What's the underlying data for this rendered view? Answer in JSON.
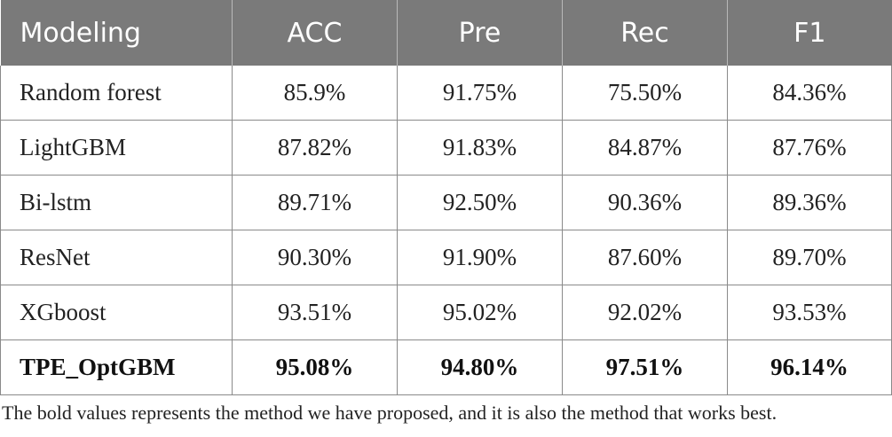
{
  "table": {
    "headers": [
      "Modeling",
      "ACC",
      "Pre",
      "Rec",
      "F1"
    ],
    "rows": [
      {
        "cells": [
          "Random forest",
          "85.9%",
          "91.75%",
          "75.50%",
          "84.36%"
        ],
        "bold": false
      },
      {
        "cells": [
          "LightGBM",
          "87.82%",
          "91.83%",
          "84.87%",
          "87.76%"
        ],
        "bold": false
      },
      {
        "cells": [
          "Bi-lstm",
          "89.71%",
          "92.50%",
          "90.36%",
          "89.36%"
        ],
        "bold": false
      },
      {
        "cells": [
          "ResNet",
          "90.30%",
          "91.90%",
          "87.60%",
          "89.70%"
        ],
        "bold": false
      },
      {
        "cells": [
          "XGboost",
          "93.51%",
          "95.02%",
          "92.02%",
          "93.53%"
        ],
        "bold": false
      },
      {
        "cells": [
          "TPE_OptGBM",
          "95.08%",
          "94.80%",
          "97.51%",
          "96.14%"
        ],
        "bold": true
      }
    ]
  },
  "footnote": "The bold values represents the method we have proposed, and it is also the method that works best.",
  "colors": {
    "header_background": "#7a7a7a",
    "header_text": "#ffffff",
    "grid_lines": "#8a8a8a"
  }
}
